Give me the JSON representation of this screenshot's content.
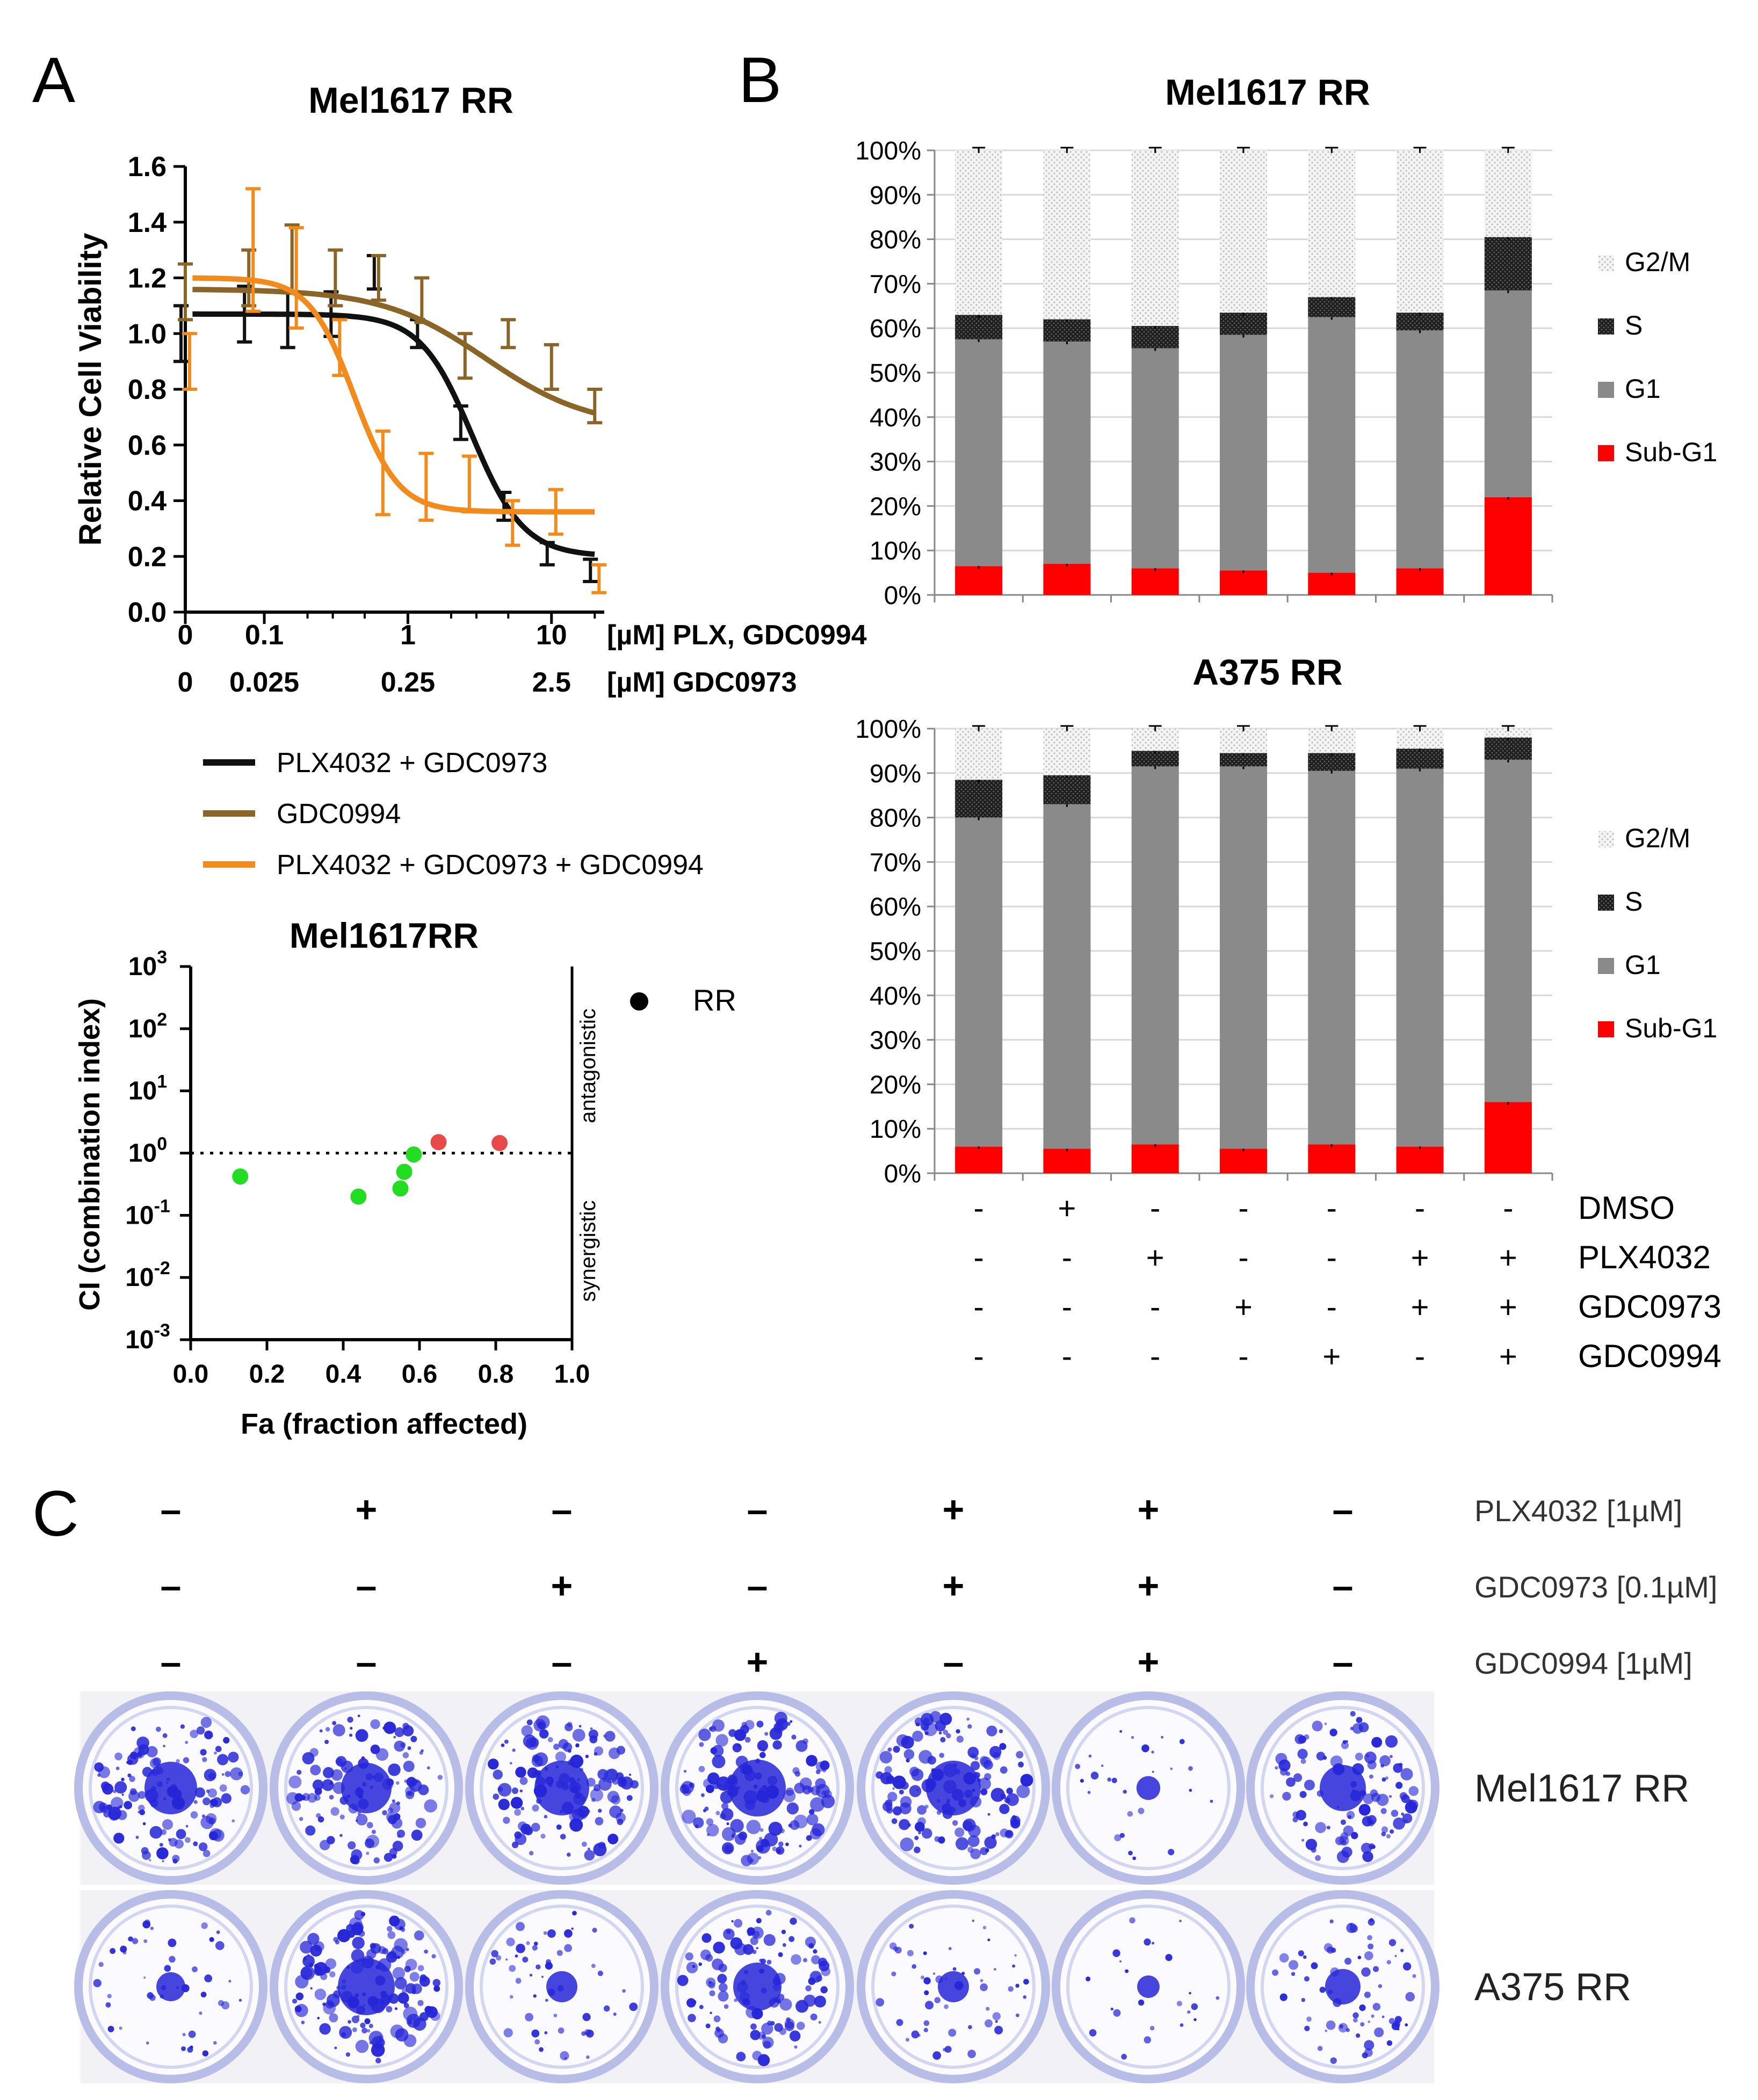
{
  "panels": {
    "a": "A",
    "b": "B",
    "c": "C"
  },
  "chart_data": [
    {
      "id": "dose_response",
      "type": "line",
      "title": "Mel1617 RR",
      "ylabel": "Relative Cell Viability",
      "ylim": [
        0.0,
        1.6
      ],
      "yticks": [
        "0.0",
        "0.2",
        "0.4",
        "0.6",
        "0.8",
        "1.0",
        "1.2",
        "1.4",
        "1.6"
      ],
      "x_scale": "log",
      "xaxis_rows": [
        {
          "ticks": [
            "0",
            "0.1",
            "1",
            "10"
          ],
          "label": "[µM] PLX, GDC0994"
        },
        {
          "ticks": [
            "0",
            "0.025",
            "0.25",
            "2.5"
          ],
          "label": "[µM] GDC0973"
        }
      ],
      "colors": {
        "PLX4032 + GDC0973": "#111111",
        "GDC0994": "#8b6428",
        "PLX4032 + GDC0973 + GDC0994": "#f28a1c"
      },
      "x": [
        0,
        0.078,
        0.156,
        0.3125,
        0.625,
        1.25,
        2.5,
        5,
        10,
        20
      ],
      "series": [
        {
          "name": "PLX4032 + GDC0973",
          "color": "#111111",
          "values": [
            1.0,
            1.07,
            1.05,
            1.07,
            1.22,
            1.0,
            0.68,
            0.38,
            0.21,
            0.15
          ],
          "errors": [
            0.1,
            0.1,
            0.1,
            0.08,
            0.06,
            0.05,
            0.06,
            0.05,
            0.04,
            0.04
          ]
        },
        {
          "name": "GDC0994",
          "color": "#8b6428",
          "values": [
            1.15,
            1.2,
            1.27,
            1.2,
            1.2,
            1.12,
            0.92,
            1.0,
            0.88,
            0.74
          ],
          "errors": [
            0.1,
            0.1,
            0.12,
            0.1,
            0.08,
            0.08,
            0.08,
            0.05,
            0.08,
            0.06
          ]
        },
        {
          "name": "PLX4032 + GDC0973 + GDC0994",
          "color": "#f28a1c",
          "values": [
            0.9,
            1.3,
            1.2,
            0.95,
            0.5,
            0.45,
            0.46,
            0.32,
            0.36,
            0.12
          ],
          "errors": [
            0.1,
            0.22,
            0.18,
            0.1,
            0.15,
            0.12,
            0.1,
            0.08,
            0.08,
            0.05
          ]
        }
      ]
    },
    {
      "id": "combination_index",
      "type": "scatter",
      "title": "Mel1617RR",
      "xlabel": "Fa (fraction affected)",
      "ylabel": "CI (combination index)",
      "xlim": [
        0.0,
        1.0
      ],
      "ylim_log10": [
        -3,
        3
      ],
      "x_scale": "linear",
      "y_scale": "log",
      "xticks": [
        "0.0",
        "0.2",
        "0.4",
        "0.6",
        "0.8",
        "1.0"
      ],
      "yticks": [
        {
          "base": "10",
          "exp": "-3"
        },
        {
          "base": "10",
          "exp": "-2"
        },
        {
          "base": "10",
          "exp": "-1"
        },
        {
          "base": "10",
          "exp": "0"
        },
        {
          "base": "10",
          "exp": "1"
        },
        {
          "base": "10",
          "exp": "2"
        },
        {
          "base": "10",
          "exp": "3"
        }
      ],
      "reference_line": 1.0,
      "annotations": {
        "above": "antagonistic",
        "below": "synergistic"
      },
      "legend": "RR",
      "colors": {
        "synergistic": "#22dd22",
        "antagonistic": "#e84a4a"
      },
      "points": [
        {
          "fa": 0.13,
          "ci": 0.42,
          "color": "#22dd22"
        },
        {
          "fa": 0.44,
          "ci": 0.2,
          "color": "#22dd22"
        },
        {
          "fa": 0.55,
          "ci": 0.27,
          "color": "#22dd22"
        },
        {
          "fa": 0.56,
          "ci": 0.5,
          "color": "#22dd22"
        },
        {
          "fa": 0.585,
          "ci": 0.95,
          "color": "#22dd22"
        },
        {
          "fa": 0.65,
          "ci": 1.5,
          "color": "#e84a4a"
        },
        {
          "fa": 0.81,
          "ci": 1.45,
          "color": "#e84a4a"
        }
      ]
    },
    {
      "id": "cell_cycle_mel",
      "type": "bar",
      "stacked": true,
      "title": "Mel1617 RR",
      "ylim": [
        0,
        100
      ],
      "yticks": [
        "0%",
        "10%",
        "20%",
        "30%",
        "40%",
        "50%",
        "60%",
        "70%",
        "80%",
        "90%",
        "100%"
      ],
      "legend": [
        "G2/M",
        "S",
        "G1",
        "Sub-G1"
      ],
      "colors": {
        "Sub-G1": "#ff0000",
        "G1": "#8a8a8a",
        "S": "#222222",
        "G2/M": "#e6e6e6"
      },
      "series": [
        {
          "name": "Sub-G1",
          "values": [
            6.5,
            7.0,
            6.0,
            5.5,
            5.0,
            6.0,
            22.0
          ]
        },
        {
          "name": "G1",
          "values": [
            51.0,
            50.0,
            49.5,
            53.0,
            57.5,
            53.5,
            46.5
          ]
        },
        {
          "name": "S",
          "values": [
            5.5,
            5.0,
            5.0,
            5.0,
            4.5,
            4.0,
            12.0
          ]
        },
        {
          "name": "G2/M",
          "values": [
            37.0,
            38.0,
            39.5,
            36.5,
            33.0,
            36.5,
            19.5
          ]
        }
      ]
    },
    {
      "id": "cell_cycle_a375",
      "type": "bar",
      "stacked": true,
      "title": "A375 RR",
      "ylim": [
        0,
        100
      ],
      "yticks": [
        "0%",
        "10%",
        "20%",
        "30%",
        "40%",
        "50%",
        "60%",
        "70%",
        "80%",
        "90%",
        "100%"
      ],
      "legend": [
        "G2/M",
        "S",
        "G1",
        "Sub-G1"
      ],
      "colors": {
        "Sub-G1": "#ff0000",
        "G1": "#8a8a8a",
        "S": "#222222",
        "G2/M": "#e6e6e6"
      },
      "series": [
        {
          "name": "Sub-G1",
          "values": [
            6.0,
            5.5,
            6.5,
            5.5,
            6.5,
            6.0,
            16.0
          ]
        },
        {
          "name": "G1",
          "values": [
            74.0,
            77.5,
            85.0,
            86.0,
            84.0,
            85.0,
            77.0
          ]
        },
        {
          "name": "S",
          "values": [
            8.5,
            6.5,
            3.5,
            3.0,
            4.0,
            4.5,
            5.0
          ]
        },
        {
          "name": "G2/M",
          "values": [
            11.5,
            10.5,
            5.0,
            5.5,
            5.5,
            4.5,
            2.0
          ]
        }
      ]
    }
  ],
  "treatment_table_b": {
    "rows": [
      {
        "label": "DMSO",
        "signs": [
          "-",
          "+",
          "-",
          "-",
          "-",
          "-",
          "-"
        ]
      },
      {
        "label": "PLX4032",
        "signs": [
          "-",
          "-",
          "+",
          "-",
          "-",
          "+",
          "+"
        ]
      },
      {
        "label": "GDC0973",
        "signs": [
          "-",
          "-",
          "-",
          "+",
          "-",
          "+",
          "+"
        ]
      },
      {
        "label": "GDC0994",
        "signs": [
          "-",
          "-",
          "-",
          "-",
          "+",
          "-",
          "+"
        ]
      }
    ]
  },
  "treatment_table_c": {
    "rows": [
      {
        "label": "PLX4032 [1µM]",
        "signs": [
          "–",
          "+",
          "–",
          "–",
          "+",
          "+",
          "–"
        ]
      },
      {
        "label": "GDC0973 [0.1µM]",
        "signs": [
          "–",
          "–",
          "+",
          "–",
          "+",
          "+",
          "–"
        ]
      },
      {
        "label": "GDC0994 [1µM]",
        "signs": [
          "–",
          "–",
          "–",
          "+",
          "–",
          "+",
          "–"
        ]
      }
    ]
  },
  "colony_assay": {
    "rows": [
      {
        "label": "Mel1617 RR",
        "density": [
          0.85,
          0.8,
          0.9,
          0.95,
          0.9,
          0.18,
          0.7
        ]
      },
      {
        "label": "A375 RR",
        "density": [
          0.3,
          0.95,
          0.35,
          0.75,
          0.35,
          0.15,
          0.45
        ]
      }
    ],
    "colors": {
      "stain": "#2626d8",
      "well": "#b8bde8"
    }
  }
}
